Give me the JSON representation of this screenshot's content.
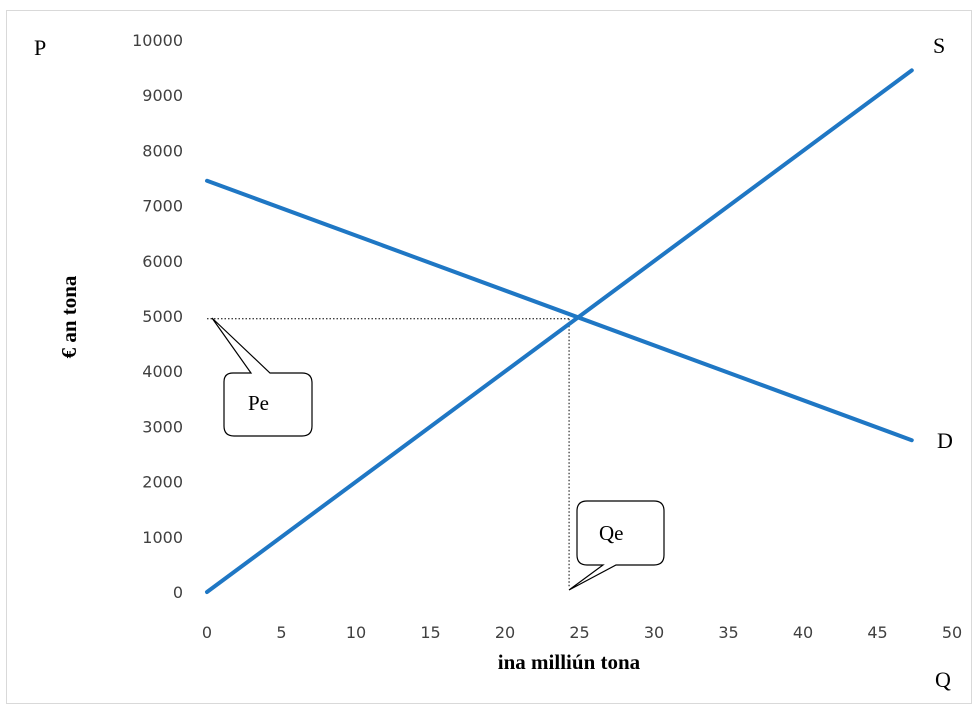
{
  "chart_data": {
    "type": "line",
    "xlim": [
      0,
      50
    ],
    "ylim": [
      0,
      10000
    ],
    "xticks": [
      0,
      5,
      10,
      15,
      20,
      25,
      30,
      35,
      40,
      45,
      50
    ],
    "yticks": [
      0,
      1000,
      2000,
      3000,
      4000,
      5000,
      6000,
      7000,
      8000,
      9000,
      10000
    ],
    "xlabel": "ina milliún tona",
    "ylabel": "€ an tona",
    "corner_labels": {
      "price": "P",
      "quantity": "Q"
    },
    "series": [
      {
        "name": "S",
        "color": "#1f77c4",
        "points": [
          [
            0,
            0
          ],
          [
            47.3,
            9450
          ]
        ]
      },
      {
        "name": "D",
        "color": "#1f77c4",
        "points": [
          [
            0,
            7450
          ],
          [
            47.3,
            2750
          ]
        ]
      }
    ],
    "equilibrium": {
      "x": 24.3,
      "y": 4950
    },
    "callouts": {
      "price": "Pe",
      "quantity": "Qe"
    },
    "grid": false
  }
}
